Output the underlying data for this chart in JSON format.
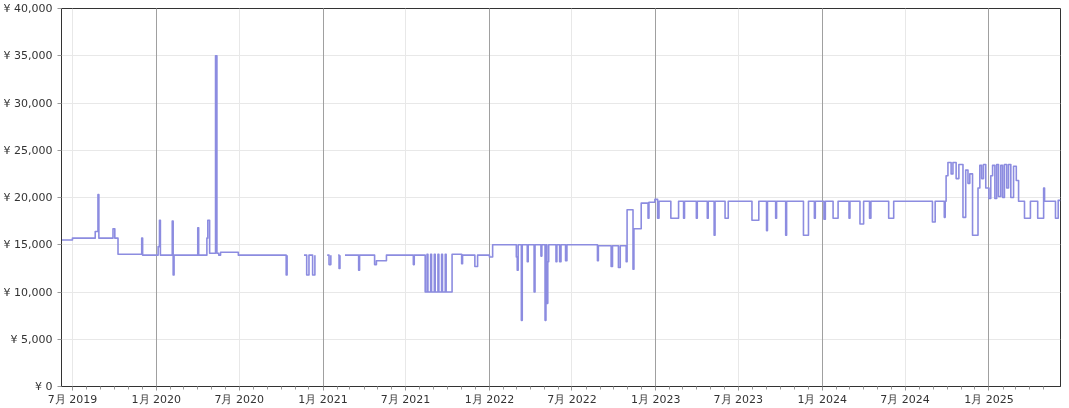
{
  "chart_data": {
    "type": "step",
    "xlim": [
      "2019-06-07",
      "2025-06-07"
    ],
    "ylim": [
      0,
      40000
    ],
    "yticks": [
      {
        "value": 0,
        "label": "¥ 0"
      },
      {
        "value": 5000,
        "label": "¥ 5,000"
      },
      {
        "value": 10000,
        "label": "¥ 10,000"
      },
      {
        "value": 15000,
        "label": "¥ 15,000"
      },
      {
        "value": 20000,
        "label": "¥ 20,000"
      },
      {
        "value": 25000,
        "label": "¥ 25,000"
      },
      {
        "value": 30000,
        "label": "¥ 30,000"
      },
      {
        "value": 35000,
        "label": "¥ 35,000"
      },
      {
        "value": 40000,
        "label": "¥ 40,000"
      }
    ],
    "xticks": [
      {
        "value": "2019-07",
        "label": "7月 2019"
      },
      {
        "value": "2019-08",
        "label": null
      },
      {
        "value": "2019-09",
        "label": null
      },
      {
        "value": "2019-10",
        "label": null
      },
      {
        "value": "2019-11",
        "label": null
      },
      {
        "value": "2019-12",
        "label": null
      },
      {
        "value": "2020-01",
        "label": "1月 2020"
      },
      {
        "value": "2020-02",
        "label": null
      },
      {
        "value": "2020-03",
        "label": null
      },
      {
        "value": "2020-04",
        "label": null
      },
      {
        "value": "2020-05",
        "label": null
      },
      {
        "value": "2020-06",
        "label": null
      },
      {
        "value": "2020-07",
        "label": "7月 2020"
      },
      {
        "value": "2020-08",
        "label": null
      },
      {
        "value": "2020-09",
        "label": null
      },
      {
        "value": "2020-10",
        "label": null
      },
      {
        "value": "2020-11",
        "label": null
      },
      {
        "value": "2020-12",
        "label": null
      },
      {
        "value": "2021-01",
        "label": "1月 2021"
      },
      {
        "value": "2021-02",
        "label": null
      },
      {
        "value": "2021-03",
        "label": null
      },
      {
        "value": "2021-04",
        "label": null
      },
      {
        "value": "2021-05",
        "label": null
      },
      {
        "value": "2021-06",
        "label": null
      },
      {
        "value": "2021-07",
        "label": "7月 2021"
      },
      {
        "value": "2021-08",
        "label": null
      },
      {
        "value": "2021-09",
        "label": null
      },
      {
        "value": "2021-10",
        "label": null
      },
      {
        "value": "2021-11",
        "label": null
      },
      {
        "value": "2021-12",
        "label": null
      },
      {
        "value": "2022-01",
        "label": "1月 2022"
      },
      {
        "value": "2022-02",
        "label": null
      },
      {
        "value": "2022-03",
        "label": null
      },
      {
        "value": "2022-04",
        "label": null
      },
      {
        "value": "2022-05",
        "label": null
      },
      {
        "value": "2022-06",
        "label": null
      },
      {
        "value": "2022-07",
        "label": "7月 2022"
      },
      {
        "value": "2022-08",
        "label": null
      },
      {
        "value": "2022-09",
        "label": null
      },
      {
        "value": "2022-10",
        "label": null
      },
      {
        "value": "2022-11",
        "label": null
      },
      {
        "value": "2022-12",
        "label": null
      },
      {
        "value": "2023-01",
        "label": "1月 2023"
      },
      {
        "value": "2023-02",
        "label": null
      },
      {
        "value": "2023-03",
        "label": null
      },
      {
        "value": "2023-04",
        "label": null
      },
      {
        "value": "2023-05",
        "label": null
      },
      {
        "value": "2023-06",
        "label": null
      },
      {
        "value": "2023-07",
        "label": "7月 2023"
      },
      {
        "value": "2023-08",
        "label": null
      },
      {
        "value": "2023-09",
        "label": null
      },
      {
        "value": "2023-10",
        "label": null
      },
      {
        "value": "2023-11",
        "label": null
      },
      {
        "value": "2023-12",
        "label": null
      },
      {
        "value": "2024-01",
        "label": "1月 2024"
      },
      {
        "value": "2024-02",
        "label": null
      },
      {
        "value": "2024-03",
        "label": null
      },
      {
        "value": "2024-04",
        "label": null
      },
      {
        "value": "2024-05",
        "label": null
      },
      {
        "value": "2024-06",
        "label": null
      },
      {
        "value": "2024-07",
        "label": "7月 2024"
      },
      {
        "value": "2024-08",
        "label": null
      },
      {
        "value": "2024-09",
        "label": null
      },
      {
        "value": "2024-10",
        "label": null
      },
      {
        "value": "2024-11",
        "label": null
      },
      {
        "value": "2024-12",
        "label": null
      },
      {
        "value": "2025-01",
        "label": "1月 2025"
      },
      {
        "value": "2025-02",
        "label": null
      },
      {
        "value": "2025-03",
        "label": null
      },
      {
        "value": "2025-04",
        "label": null
      },
      {
        "value": "2025-05",
        "label": null
      }
    ],
    "grid": true,
    "series": [
      {
        "color": "#8c8ce0",
        "x": [
          "2019-06-07",
          "2019-07-01",
          "2019-08-20",
          "2019-08-26",
          "2019-08-28",
          "2019-09-28",
          "2019-10-02",
          "2019-10-09",
          "2019-11-30",
          "2019-12-02",
          "2020-01-05",
          "2020-01-08",
          "2020-01-10",
          "2020-02-05",
          "2020-02-07",
          "2020-02-09",
          "2020-04-01",
          "2020-04-03",
          "2020-04-21",
          "2020-04-23",
          "2020-04-27",
          "2020-05-10",
          "2020-05-13",
          "2020-05-17",
          "2020-05-21",
          "2020-06-29",
          "2020-10-12",
          "2020-10-14",
          "2020-11-02",
          "2020-11-20",
          "2020-11-26",
          "2020-12-01",
          "2020-12-09",
          "2020-12-14",
          "2020-12-20",
          "2021-01-10",
          "2021-01-14",
          "2021-01-18",
          "2021-01-29",
          "2021-02-03",
          "2021-02-05",
          "2021-02-07",
          "2021-02-11",
          "2021-02-18",
          "2021-03-20",
          "2021-03-22",
          "2021-04-24",
          "2021-04-28",
          "2021-05-20",
          "2021-07-18",
          "2021-07-20",
          "2021-08-13",
          "2021-08-17",
          "2021-08-19",
          "2021-08-25",
          "2021-08-27",
          "2021-09-02",
          "2021-09-04",
          "2021-09-10",
          "2021-09-12",
          "2021-09-18",
          "2021-09-20",
          "2021-09-26",
          "2021-09-28",
          "2021-10-11",
          "2021-11-01",
          "2021-11-03",
          "2021-11-30",
          "2021-12-06",
          "2022-01-01",
          "2022-01-08",
          "2022-03-01",
          "2022-03-03",
          "2022-03-05",
          "2022-03-12",
          "2022-03-14",
          "2022-03-25",
          "2022-03-27",
          "2022-04-09",
          "2022-04-11",
          "2022-04-24",
          "2022-04-26",
          "2022-05-03",
          "2022-05-05",
          "2022-05-07",
          "2022-05-09",
          "2022-05-11",
          "2022-05-27",
          "2022-05-29",
          "2022-06-04",
          "2022-06-07",
          "2022-06-17",
          "2022-06-20",
          "2022-08-26",
          "2022-08-28",
          "2022-09-25",
          "2022-09-28",
          "2022-10-11",
          "2022-10-15",
          "2022-10-28",
          "2022-10-30",
          "2022-11-12",
          "2022-11-14",
          "2022-11-30",
          "2022-12-15",
          "2022-12-17",
          "2022-12-30",
          "2023-01-05",
          "2023-01-08",
          "2023-02-03",
          "2023-02-20",
          "2023-03-03",
          "2023-03-05",
          "2023-03-31",
          "2023-04-02",
          "2023-04-24",
          "2023-04-26",
          "2023-05-09",
          "2023-05-11",
          "2023-06-02",
          "2023-06-09",
          "2023-07-31",
          "2023-08-15",
          "2023-09-01",
          "2023-09-03",
          "2023-09-21",
          "2023-09-23",
          "2023-10-13",
          "2023-10-15",
          "2023-11-21",
          "2023-12-02",
          "2023-12-15",
          "2023-12-17",
          "2024-01-05",
          "2024-01-08",
          "2024-01-25",
          "2024-02-05",
          "2024-02-29",
          "2024-03-02",
          "2024-03-24",
          "2024-04-01",
          "2024-04-14",
          "2024-04-17",
          "2024-05-26",
          "2024-06-06",
          "2024-08-30",
          "2024-09-05",
          "2024-09-25",
          "2024-09-27",
          "2024-09-29",
          "2024-10-03",
          "2024-10-10",
          "2024-10-14",
          "2024-10-21",
          "2024-10-27",
          "2024-11-05",
          "2024-11-11",
          "2024-11-16",
          "2024-11-20",
          "2024-11-26",
          "2024-12-08",
          "2024-12-12",
          "2024-12-16",
          "2024-12-20",
          "2024-12-25",
          "2025-01-01",
          "2025-01-05",
          "2025-01-09",
          "2025-01-14",
          "2025-01-18",
          "2025-01-22",
          "2025-01-27",
          "2025-01-31",
          "2025-02-04",
          "2025-02-09",
          "2025-02-13",
          "2025-02-18",
          "2025-02-24",
          "2025-03-02",
          "2025-03-07",
          "2025-03-20",
          "2025-04-02",
          "2025-04-18",
          "2025-05-01",
          "2025-05-03",
          "2025-05-27",
          "2025-06-02",
          "2025-06-07"
        ],
        "values": [
          15500,
          15700,
          16400,
          20300,
          15700,
          16700,
          15700,
          14000,
          15700,
          13900,
          14800,
          17600,
          13900,
          17500,
          11800,
          13900,
          16800,
          13900,
          15700,
          17600,
          14100,
          35000,
          14100,
          13900,
          14200,
          13900,
          11800,
          13900,
          null,
          13900,
          11800,
          13900,
          11800,
          13900,
          null,
          13900,
          12900,
          13900,
          null,
          13900,
          12500,
          13900,
          null,
          13900,
          12300,
          13900,
          12900,
          13300,
          13900,
          12900,
          13900,
          10000,
          14000,
          10000,
          14000,
          10000,
          14000,
          10000,
          14000,
          10000,
          14000,
          10000,
          14000,
          10000,
          14000,
          13000,
          13900,
          12700,
          13900,
          13700,
          15000,
          13700,
          12300,
          15000,
          7000,
          15000,
          13200,
          15000,
          10000,
          15000,
          13800,
          15000,
          7000,
          15000,
          8800,
          13200,
          15000,
          13200,
          15000,
          13200,
          15000,
          13300,
          15000,
          13300,
          14900,
          12700,
          14900,
          12600,
          14900,
          13200,
          18700,
          12400,
          16700,
          19400,
          17800,
          19500,
          19800,
          17800,
          19600,
          17800,
          19600,
          17800,
          19600,
          17800,
          19600,
          17800,
          19600,
          16000,
          19600,
          17800,
          19600,
          17600,
          19600,
          16500,
          19600,
          17800,
          19600,
          16000,
          19600,
          16000,
          19600,
          17800,
          19600,
          17700,
          19600,
          17800,
          19600,
          17800,
          19600,
          17200,
          19600,
          17800,
          19600,
          17800,
          19600,
          17400,
          19600,
          17900,
          19600,
          22300,
          23700,
          22500,
          23700,
          22000,
          23500,
          17900,
          22900,
          21500,
          22500,
          16000,
          21000,
          23400,
          22000,
          23500,
          21000,
          19900,
          22300,
          23400,
          19900,
          23500,
          20100,
          23400,
          20000,
          23500,
          21000,
          23500,
          20000,
          23300,
          21800,
          19600,
          17800,
          19600,
          17800,
          21000,
          19600,
          17800,
          19700,
          19700
        ]
      }
    ]
  }
}
